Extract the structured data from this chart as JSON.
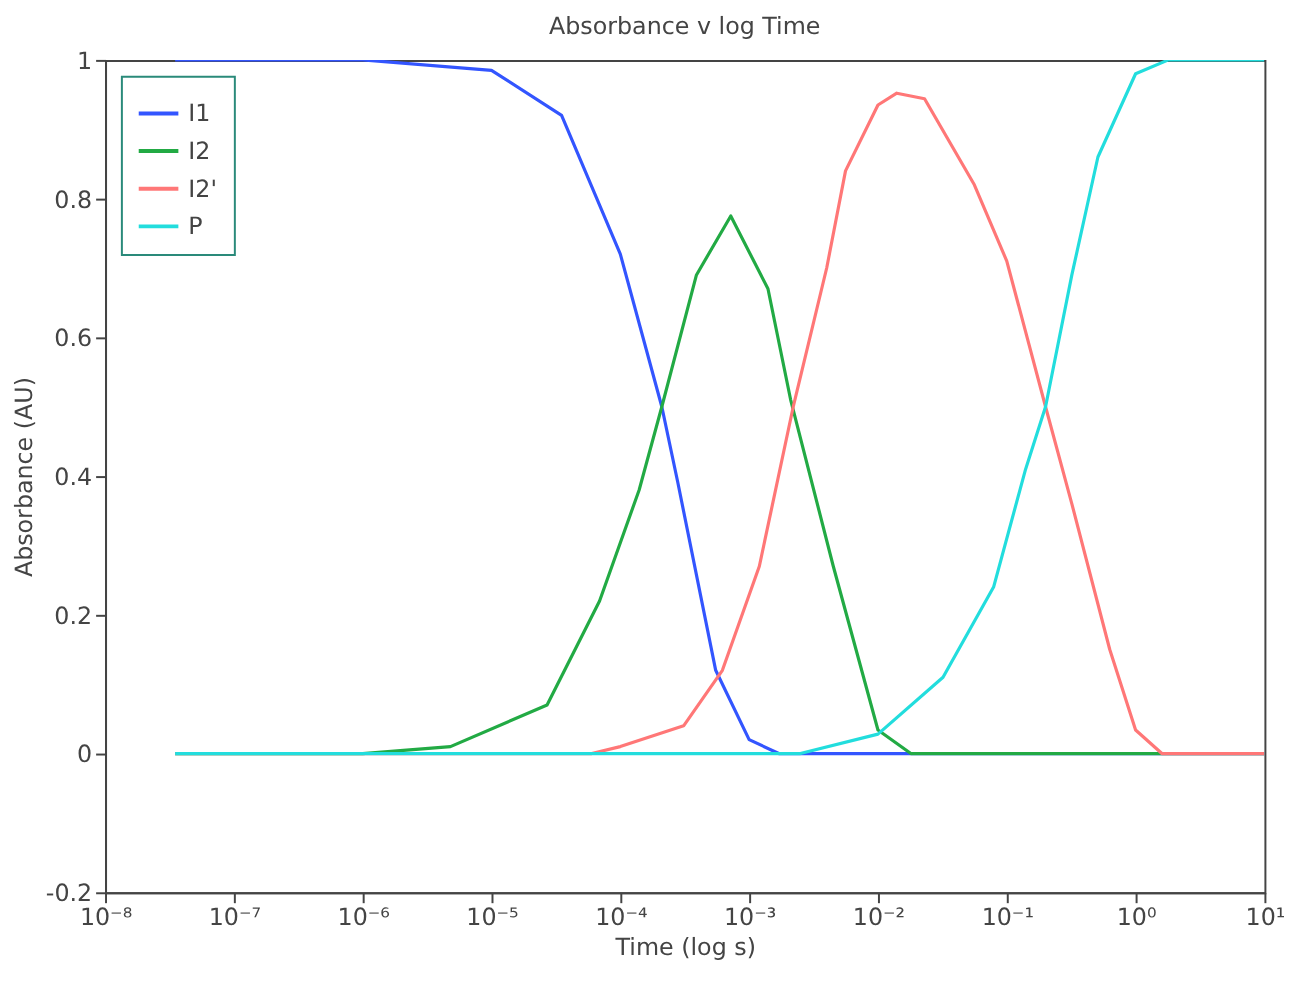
{
  "chart_data": {
    "type": "line",
    "title": "Absorbance v log Time",
    "xlabel": "Time (log s)",
    "ylabel": "Absorbance (AU)",
    "log": "x",
    "xlim": [
      1e-08,
      10
    ],
    "xticks": [
      {
        "value": 1e-08,
        "label": "10⁻⁸"
      },
      {
        "value": 1e-07,
        "label": "10⁻⁷"
      },
      {
        "value": 1e-06,
        "label": "10⁻⁶"
      },
      {
        "value": 1e-05,
        "label": "10⁻⁵"
      },
      {
        "value": 0.0001,
        "label": "10⁻⁴"
      },
      {
        "value": 0.001,
        "label": "10⁻³"
      },
      {
        "value": 0.01,
        "label": "10⁻²"
      },
      {
        "value": 0.1,
        "label": "10⁻¹"
      },
      {
        "value": 1,
        "label": "10⁰"
      },
      {
        "value": 10,
        "label": "10¹"
      }
    ],
    "ylim": [
      -0.2,
      1
    ],
    "yticks": [
      -0.2,
      0,
      0.2,
      0.4,
      0.6,
      0.8,
      1
    ],
    "grid": false,
    "legend": "top left",
    "marker": "none",
    "line_style": "solid",
    "series": [
      {
        "name": "I1",
        "color": "#3355ff",
        "x": [
          3.5e-08,
          1e-06,
          1e-05,
          3.5e-05,
          0.0001,
          0.00021,
          0.00028,
          0.00055,
          0.001,
          0.0017,
          10
        ],
        "values": [
          1,
          1,
          0.985,
          0.92,
          0.72,
          0.5,
          0.39,
          0.12,
          0.02,
          0,
          0
        ]
      },
      {
        "name": "I2",
        "color": "#22aa44",
        "x": [
          3.5e-08,
          1e-06,
          4.8e-06,
          2.7e-05,
          6.9e-05,
          0.00014,
          0.00021,
          0.00039,
          0.00072,
          0.0014,
          0.0021,
          0.0045,
          0.01,
          0.018,
          10
        ],
        "values": [
          0,
          0,
          0.01,
          0.07,
          0.22,
          0.38,
          0.5,
          0.69,
          0.775,
          0.67,
          0.51,
          0.27,
          0.034,
          0,
          0
        ]
      },
      {
        "name": "I2'",
        "color": "#ff7777",
        "x": [
          3.5e-08,
          6e-05,
          0.0001,
          0.00031,
          0.00062,
          0.0012,
          0.0022,
          0.004,
          0.0056,
          0.01,
          0.014,
          0.023,
          0.056,
          0.1,
          0.2,
          0.32,
          0.63,
          1,
          1.6,
          10
        ],
        "values": [
          0,
          0,
          0.01,
          0.04,
          0.12,
          0.27,
          0.5,
          0.7,
          0.84,
          0.935,
          0.952,
          0.944,
          0.82,
          0.71,
          0.5,
          0.36,
          0.15,
          0.034,
          0,
          0
        ]
      },
      {
        "name": "P",
        "color": "#22dddd",
        "x": [
          3.5e-08,
          0.0025,
          0.01,
          0.032,
          0.079,
          0.14,
          0.2,
          0.32,
          0.51,
          1,
          1.8,
          10
        ],
        "values": [
          0,
          0,
          0.028,
          0.11,
          0.24,
          0.41,
          0.5,
          0.69,
          0.86,
          0.98,
          1,
          1
        ]
      }
    ]
  }
}
